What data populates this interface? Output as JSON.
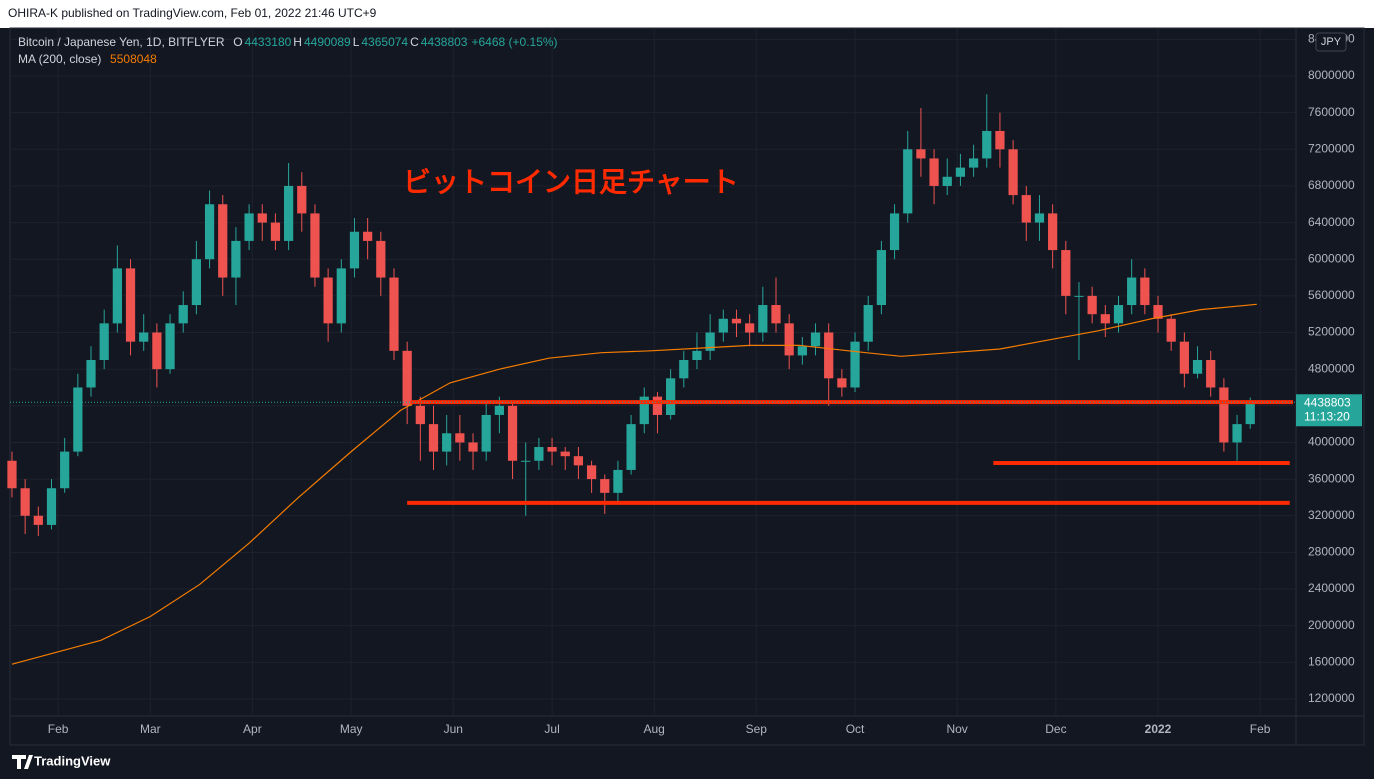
{
  "header": "OHIRA-K published on TradingView.com, Feb 01, 2022 21:46 UTC+9",
  "footer": "TradingView",
  "chart_data": {
    "type": "candlestick",
    "legend": {
      "symbol": "Bitcoin / Japanese Yen, 1D, BITFLYER",
      "ohlc": [
        {
          "label": "O",
          "value": 4433180
        },
        {
          "label": "H",
          "value": 4490089
        },
        {
          "label": "L",
          "value": 4365074
        },
        {
          "label": "C",
          "value": 4438803
        }
      ],
      "change": "+6468 (+0.15%)",
      "ma_label": "MA (200, close)",
      "ma_value": 5508048
    },
    "currency": "JPY",
    "countdown": "11:13:20",
    "annotation": "ビットコイン日足チャート",
    "up_color": "#26a69a",
    "down_color": "#ef5350",
    "x": [
      -14,
      -10,
      -6,
      -2,
      2,
      6,
      10,
      14,
      18,
      22,
      26,
      30,
      34,
      38,
      42,
      46,
      50,
      54,
      58,
      62,
      66,
      70,
      74,
      78,
      82,
      86,
      90,
      94,
      98,
      102,
      106,
      110,
      114,
      118,
      122,
      126,
      130,
      134,
      138,
      142,
      146,
      150,
      154,
      158,
      162,
      166,
      170,
      174,
      178,
      182,
      186,
      190,
      194,
      198,
      202,
      206,
      210,
      214,
      218,
      222,
      226,
      230,
      234,
      238,
      242,
      246,
      250,
      254,
      258,
      262,
      266,
      270,
      274,
      278,
      282,
      286,
      290,
      294,
      298,
      302,
      306,
      310,
      314,
      318,
      322,
      326,
      330,
      334,
      338,
      342,
      346,
      350,
      354,
      358,
      362
    ],
    "open": [
      3800000,
      3500000,
      3200000,
      3100000,
      3500000,
      3900000,
      4600000,
      4900000,
      5300000,
      5900000,
      5100000,
      5200000,
      4800000,
      5300000,
      5500000,
      6000000,
      6600000,
      5800000,
      6200000,
      6500000,
      6400000,
      6200000,
      6800000,
      6500000,
      5800000,
      5300000,
      5900000,
      6300000,
      6200000,
      5800000,
      5000000,
      4400000,
      4200000,
      3900000,
      4100000,
      4000000,
      3900000,
      4300000,
      4400000,
      3800000,
      3800000,
      3950000,
      3900000,
      3850000,
      3750000,
      3600000,
      3450000,
      3700000,
      4200000,
      4500000,
      4300000,
      4700000,
      4900000,
      5000000,
      5200000,
      5350000,
      5300000,
      5200000,
      5500000,
      5300000,
      4950000,
      5050000,
      5200000,
      4700000,
      4600000,
      5100000,
      5500000,
      6100000,
      6500000,
      7200000,
      7100000,
      6800000,
      6900000,
      7000000,
      7100000,
      7400000,
      7200000,
      6700000,
      6400000,
      6500000,
      6100000,
      5600000,
      5600000,
      5400000,
      5300000,
      5500000,
      5800000,
      5500000,
      5350000,
      5100000,
      4750000,
      4900000,
      4600000,
      4000000,
      4200000
    ],
    "high": [
      3900000,
      3600000,
      3300000,
      3600000,
      4050000,
      4750000,
      5050000,
      5450000,
      6150000,
      6000000,
      5400000,
      5300000,
      5400000,
      5650000,
      6200000,
      6750000,
      6700000,
      6350000,
      6600000,
      6600000,
      6500000,
      7050000,
      6950000,
      6600000,
      5900000,
      6000000,
      6450000,
      6450000,
      6300000,
      5900000,
      5100000,
      4500000,
      4400000,
      4300000,
      4300000,
      4100000,
      4450000,
      4500000,
      4450000,
      4000000,
      4050000,
      4050000,
      3950000,
      3950000,
      3800000,
      3650000,
      3800000,
      4300000,
      4600000,
      4550000,
      4800000,
      5000000,
      5200000,
      5400000,
      5450000,
      5450000,
      5400000,
      5700000,
      5800000,
      5400000,
      5150000,
      5300000,
      5300000,
      4800000,
      5200000,
      5600000,
      6200000,
      6600000,
      7400000,
      7650000,
      7200000,
      7100000,
      7150000,
      7250000,
      7800000,
      7600000,
      7300000,
      6800000,
      6700000,
      6600000,
      6200000,
      5750000,
      5700000,
      5500000,
      5600000,
      6000000,
      5900000,
      5600000,
      5400000,
      5200000,
      5050000,
      5000000,
      4700000,
      4300000,
      4490089
    ],
    "low": [
      3400000,
      3000000,
      2980000,
      3050000,
      3450000,
      3850000,
      4500000,
      4800000,
      5200000,
      4950000,
      5000000,
      4600000,
      4750000,
      5200000,
      5400000,
      5900000,
      5600000,
      5500000,
      6100000,
      6200000,
      6100000,
      6100000,
      6300000,
      5700000,
      5100000,
      5200000,
      5800000,
      6000000,
      5600000,
      4900000,
      4200000,
      3800000,
      3700000,
      3750000,
      3800000,
      3700000,
      3800000,
      4100000,
      3600000,
      3200000,
      3700000,
      3750000,
      3700000,
      3600000,
      3450000,
      3220000,
      3350000,
      3650000,
      4100000,
      4100000,
      4250000,
      4600000,
      4800000,
      4900000,
      5100000,
      5150000,
      5050000,
      5100000,
      5200000,
      4800000,
      4850000,
      4950000,
      4400000,
      4500000,
      4550000,
      5000000,
      5400000,
      6000000,
      6400000,
      6900000,
      6600000,
      6700000,
      6800000,
      6900000,
      7000000,
      7000000,
      6600000,
      6200000,
      6200000,
      5900000,
      5400000,
      4900000,
      5300000,
      5150000,
      5200000,
      5400000,
      5400000,
      5200000,
      5000000,
      4600000,
      4700000,
      4500000,
      3900000,
      3800000,
      4150000
    ],
    "close": [
      3500000,
      3200000,
      3100000,
      3500000,
      3900000,
      4600000,
      4900000,
      5300000,
      5900000,
      5100000,
      5200000,
      4800000,
      5300000,
      5500000,
      6000000,
      6600000,
      5800000,
      6200000,
      6500000,
      6400000,
      6200000,
      6800000,
      6500000,
      5800000,
      5300000,
      5900000,
      6300000,
      6200000,
      5800000,
      5000000,
      4400000,
      4200000,
      3900000,
      4100000,
      4000000,
      3900000,
      4300000,
      4400000,
      3800000,
      3800000,
      3950000,
      3900000,
      3850000,
      3750000,
      3600000,
      3450000,
      3700000,
      4200000,
      4500000,
      4300000,
      4700000,
      4900000,
      5000000,
      5200000,
      5350000,
      5300000,
      5200000,
      5500000,
      5300000,
      4950000,
      5050000,
      5200000,
      4700000,
      4600000,
      5100000,
      5500000,
      6100000,
      6500000,
      7200000,
      7100000,
      6800000,
      6900000,
      7000000,
      7100000,
      7400000,
      7200000,
      6700000,
      6400000,
      6500000,
      6100000,
      5600000,
      5600000,
      5400000,
      5300000,
      5500000,
      5800000,
      5500000,
      5350000,
      5100000,
      4750000,
      4900000,
      4600000,
      4000000,
      4200000,
      4438803
    ],
    "ma": {
      "color": "#f57c00",
      "x": [
        -14,
        13,
        28,
        43,
        58,
        73,
        89,
        104,
        119,
        134,
        149,
        165,
        180,
        195,
        210,
        225,
        240,
        256,
        271,
        286,
        301,
        316,
        332,
        347,
        364
      ],
      "values": [
        1580000,
        1840000,
        2100000,
        2450000,
        2900000,
        3400000,
        3900000,
        4350000,
        4650000,
        4800000,
        4920000,
        4980000,
        5000000,
        5030000,
        5060000,
        5060000,
        5000000,
        4940000,
        4980000,
        5020000,
        5120000,
        5220000,
        5350000,
        5450000,
        5508048
      ]
    },
    "hlines_color": "#ff2a00",
    "hlines": [
      {
        "value": 4440000,
        "x": [
          107,
          375
        ]
      },
      {
        "value": 3775000,
        "x": [
          284,
          374
        ]
      },
      {
        "value": 3340000,
        "x": [
          106,
          374
        ]
      }
    ],
    "xlim": [
      -14.6,
      375.9
    ],
    "xticks": [
      {
        "value": 0,
        "label": "Feb"
      },
      {
        "value": 28,
        "label": "Mar"
      },
      {
        "value": 59,
        "label": "Apr"
      },
      {
        "value": 89,
        "label": "May"
      },
      {
        "value": 120,
        "label": "Jun"
      },
      {
        "value": 150,
        "label": "Jul"
      },
      {
        "value": 181,
        "label": "Aug"
      },
      {
        "value": 212,
        "label": "Sep"
      },
      {
        "value": 242,
        "label": "Oct"
      },
      {
        "value": 273,
        "label": "Nov"
      },
      {
        "value": 303,
        "label": "Dec"
      },
      {
        "value": 334,
        "label": "2022"
      },
      {
        "value": 365,
        "label": "Feb"
      }
    ],
    "ylim": [
      1014000,
      8524000
    ],
    "yticks": [
      1200000,
      1600000,
      2000000,
      2400000,
      2800000,
      3200000,
      3600000,
      4000000,
      4400000,
      4800000,
      5200000,
      5600000,
      6000000,
      6400000,
      6800000,
      7200000,
      7600000,
      8000000,
      8400000
    ],
    "grid": true
  }
}
